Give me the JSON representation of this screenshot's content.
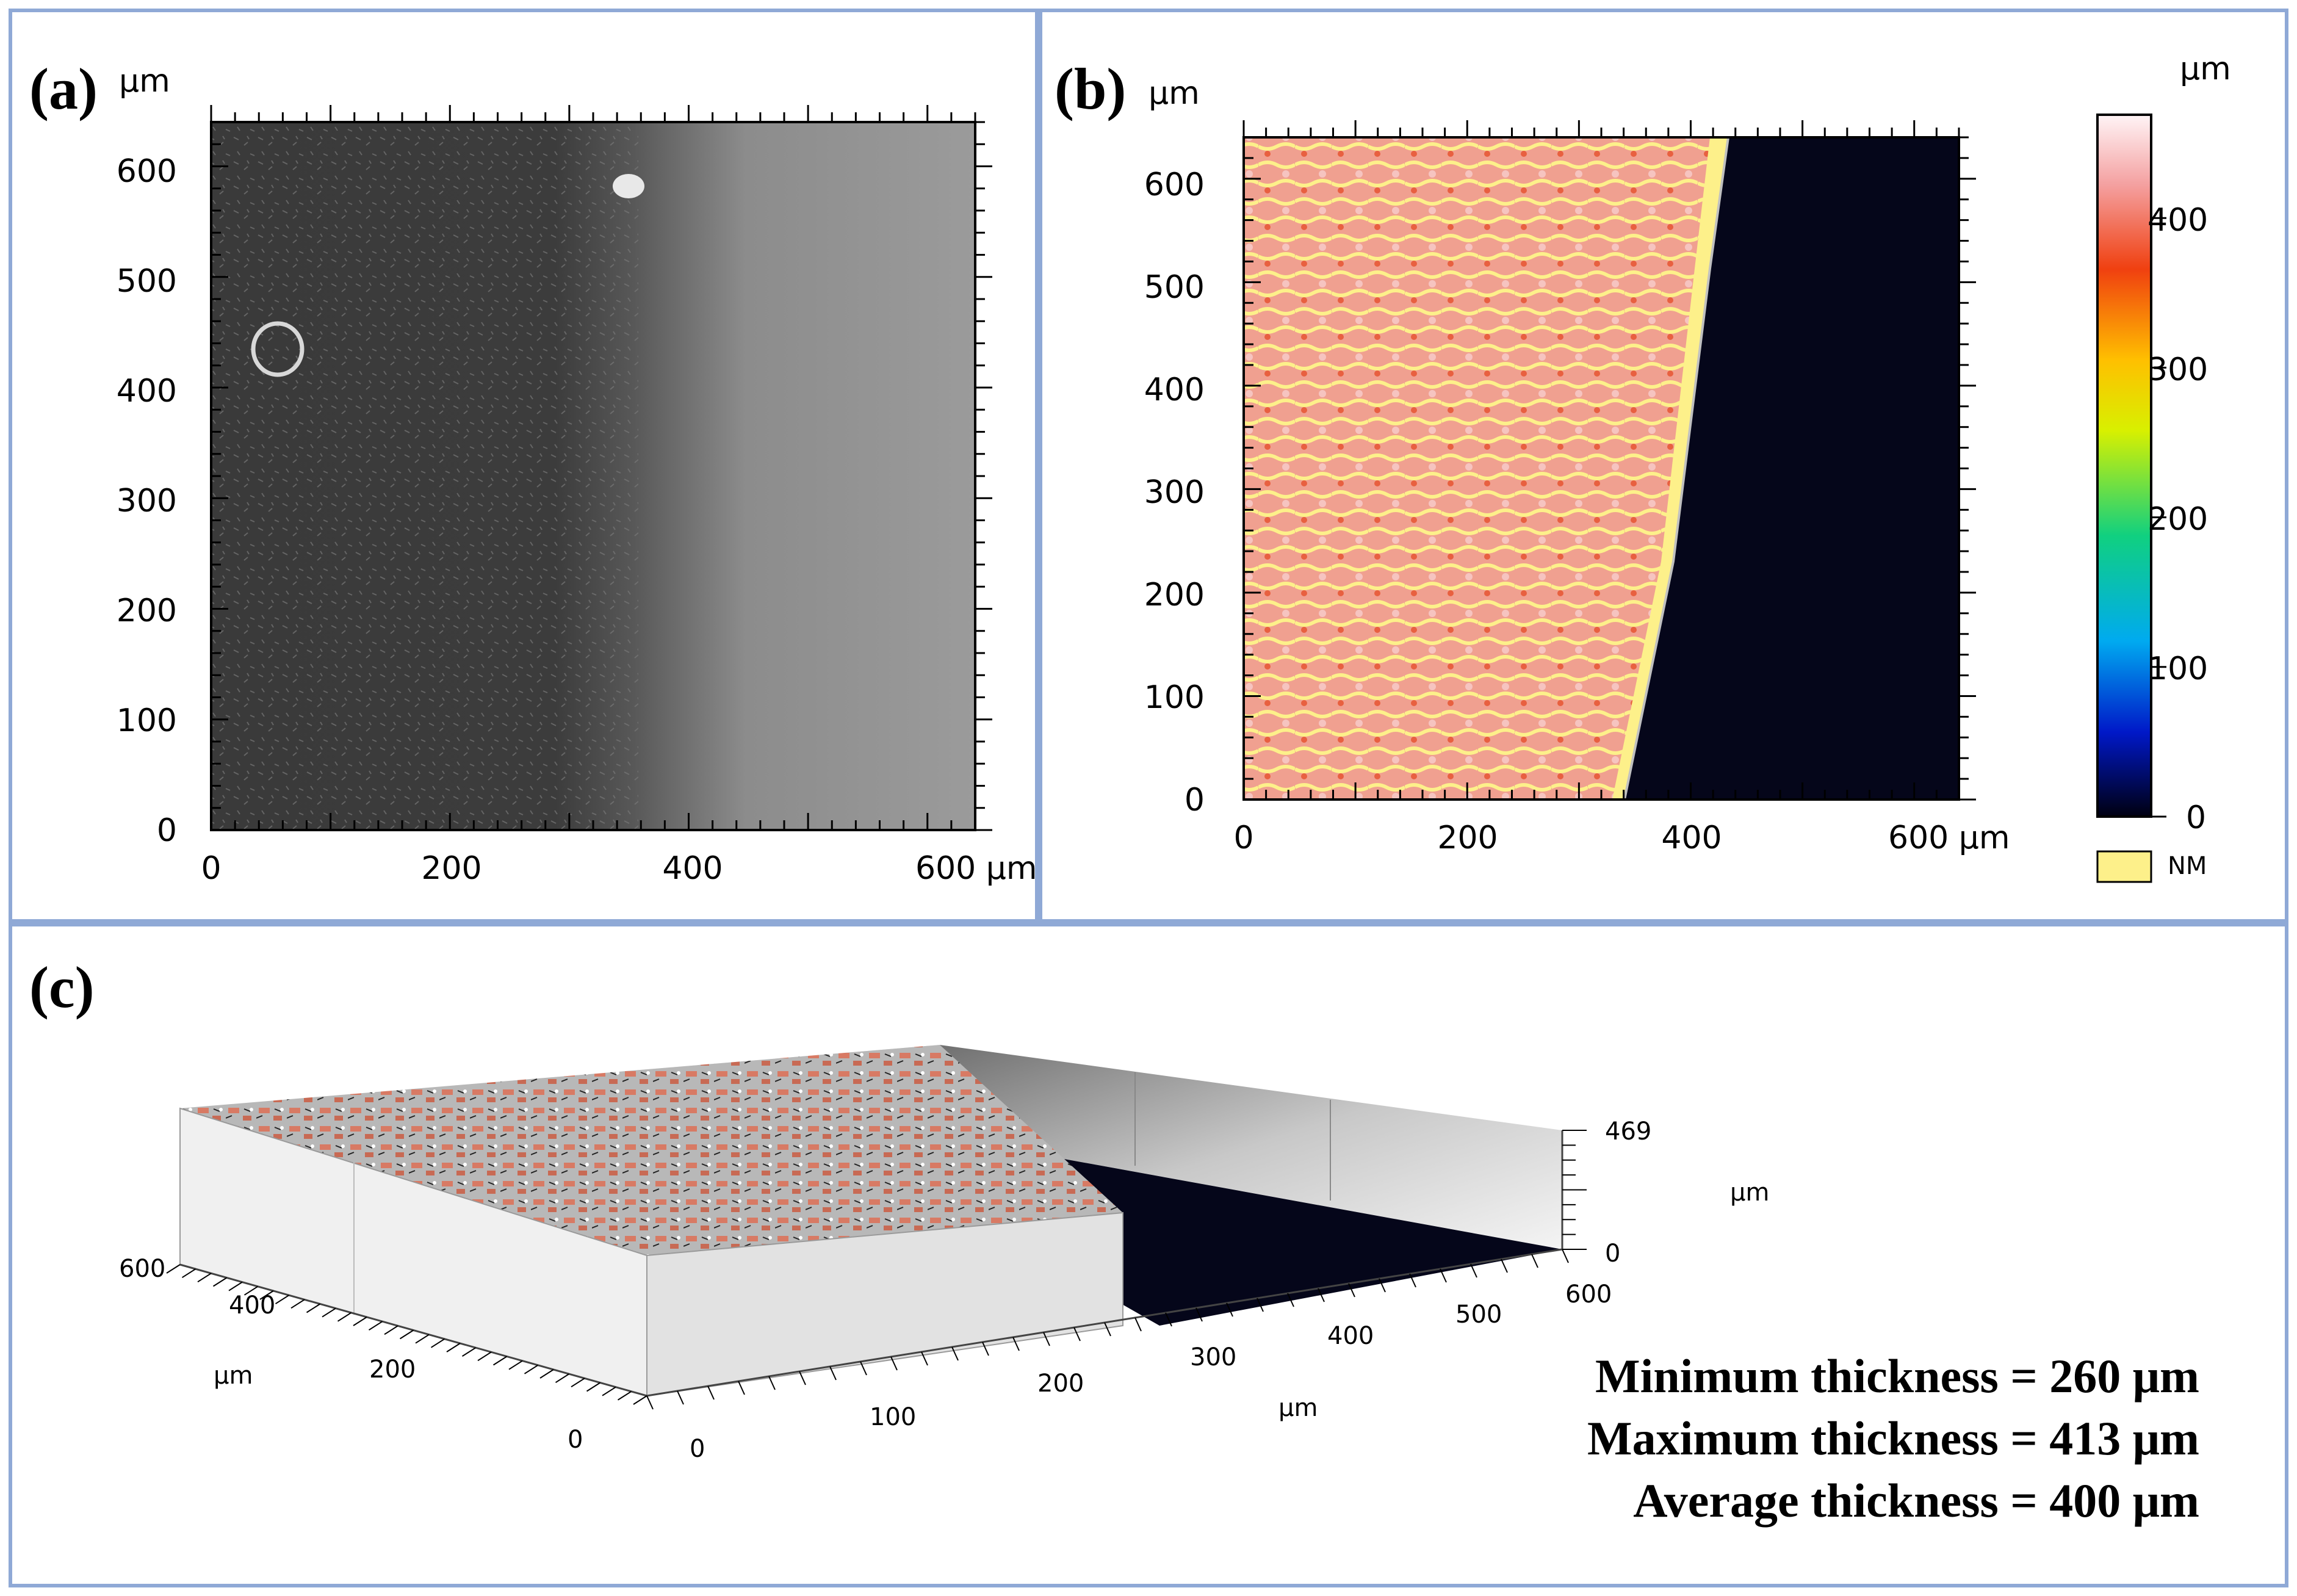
{
  "panel_a": {
    "letter": "(a)",
    "unit": "µm",
    "x_ticks": [
      "0",
      "200",
      "400",
      "600 µm"
    ],
    "y_ticks": [
      "0",
      "100",
      "200",
      "300",
      "400",
      "500",
      "600"
    ]
  },
  "panel_b": {
    "letter": "(b)",
    "unit": "µm",
    "x_ticks": [
      "0",
      "200",
      "400",
      "600 µm"
    ],
    "y_ticks": [
      "0",
      "100",
      "200",
      "300",
      "400",
      "500",
      "600"
    ],
    "colorbar": {
      "unit": "µm",
      "ticks": [
        "0",
        "100",
        "200",
        "300",
        "400"
      ],
      "range": [
        0,
        469
      ],
      "nm_label": "NM",
      "nm_color": "#fdf08a"
    }
  },
  "panel_c": {
    "letter": "(c)",
    "z_ticks": [
      "469",
      "0"
    ],
    "z_unit": "µm",
    "left_ticks": [
      "600",
      "400",
      "200",
      "0"
    ],
    "left_unit": "µm",
    "bottom_ticks": [
      "0",
      "100",
      "200",
      "300",
      "400",
      "500",
      "600"
    ],
    "bottom_unit": "µm",
    "thickness": {
      "min": "Minimum thickness = 260 μm",
      "max": "Maximum thickness = 413 μm",
      "avg": "Average thickness = 400 μm"
    }
  },
  "colors": {
    "border": "#8fa9d6",
    "dark_region": "#05061a",
    "coating": "#e8826f",
    "nm": "#fdf08a"
  }
}
